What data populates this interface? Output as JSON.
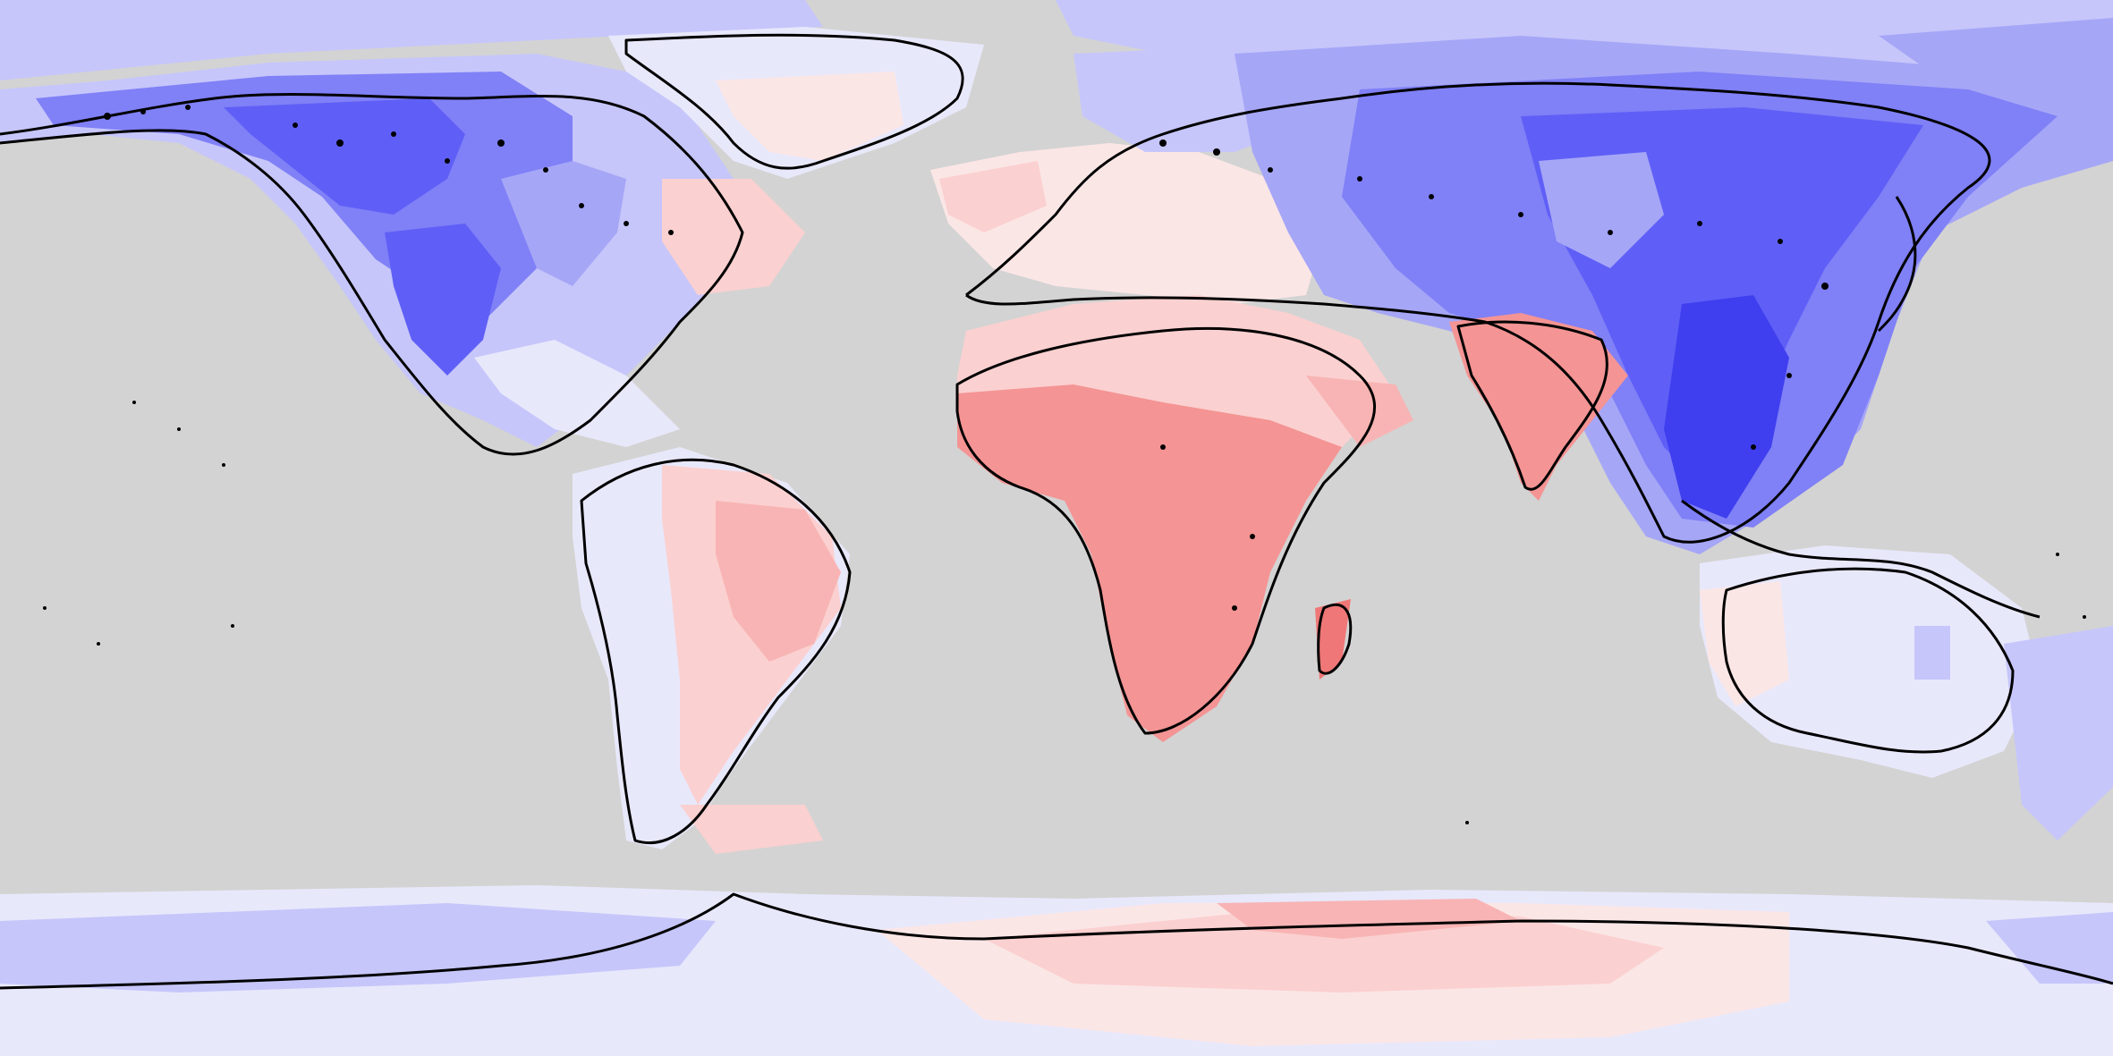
{
  "map": {
    "projection": "equirectangular",
    "ocean_color": "#d3d3d3",
    "coastline_color": "#000000",
    "colorbar_visible": false,
    "title": "",
    "legend": "",
    "palette": {
      "blue_darkest": "#3f3fef",
      "blue_dark": "#5f5ff7",
      "blue_medium": "#8080f7",
      "blue_light": "#a6a6f7",
      "blue_pale": "#c6c6fb",
      "blue_faint": "#e8e8fb",
      "red_faint": "#fbe6e6",
      "red_pale": "#fbd0d0",
      "red_light": "#f8b4b4",
      "red_medium": "#f49494",
      "red_dark": "#ef7777"
    },
    "region_tones": {
      "greenland": "red_faint",
      "north_america": "blue_medium",
      "south_america": "red_light",
      "europe": "red_faint",
      "siberia": "blue_medium",
      "east_asia": "blue_darkest",
      "india": "red_medium",
      "africa": "red_medium",
      "australia": "blue_faint",
      "antarctica": "red_light"
    }
  }
}
